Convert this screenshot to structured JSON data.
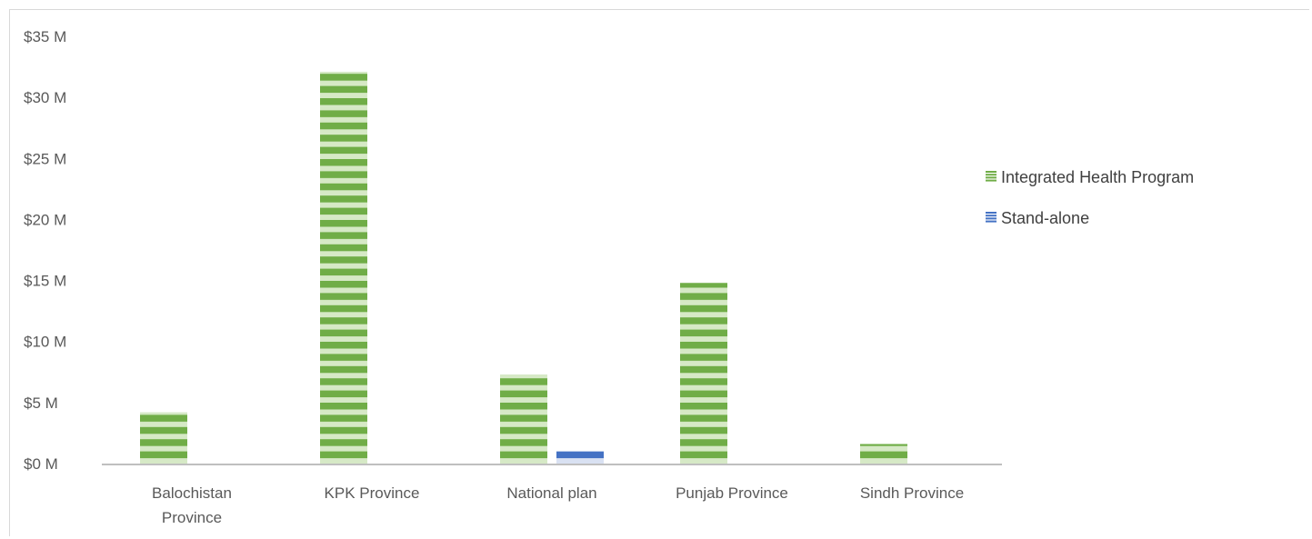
{
  "chart_data": {
    "type": "bar",
    "title": "",
    "xlabel": "",
    "ylabel": "",
    "categories": [
      [
        "Balochistan",
        "Province"
      ],
      [
        "KPK Province"
      ],
      [
        "National plan"
      ],
      [
        "Punjab Province"
      ],
      [
        "Sindh Province"
      ]
    ],
    "series": [
      {
        "name": "Integrated Health Program",
        "color": "#70ad47",
        "light_color": "#d6e9c6",
        "values": [
          4.2,
          32.1,
          7.3,
          14.8,
          1.6
        ]
      },
      {
        "name": "Stand-alone",
        "color": "#4472c4",
        "light_color": "#d9e1f2",
        "values": [
          0,
          0,
          1.0,
          0,
          0
        ]
      }
    ],
    "ylim": [
      0,
      35
    ],
    "yticks": [
      0,
      5,
      10,
      15,
      20,
      25,
      30,
      35
    ],
    "ytick_labels": [
      "$0 M",
      "$5 M",
      "$10 M",
      "$15 M",
      "$20 M",
      "$25 M",
      "$30 M",
      "$35 M"
    ],
    "grid": false,
    "legend_position": "right",
    "bar_pattern": "horizontal-stripes"
  }
}
